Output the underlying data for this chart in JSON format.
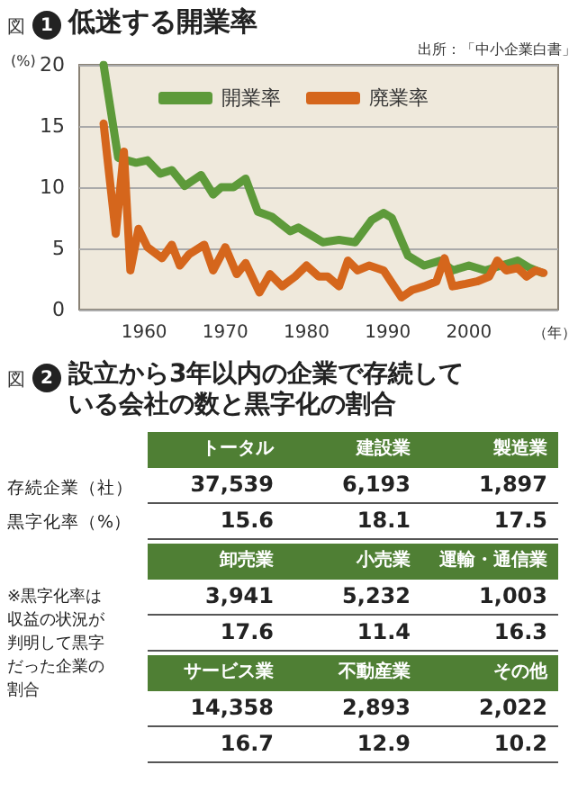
{
  "chart_data": [
    {
      "type": "line",
      "title": "低迷する開業率",
      "xlabel": "（年）",
      "ylabel": "(%)",
      "annotations": [
        "図",
        "1",
        "出所：「中小企業白書」"
      ],
      "xlim": [
        1952,
        2011
      ],
      "xticks": [
        1960,
        1970,
        1980,
        1990,
        2000
      ],
      "ylim": [
        0,
        20
      ],
      "yticks": [
        0,
        5,
        10,
        15,
        20
      ],
      "grid": "y",
      "legend": "top",
      "marker": "none",
      "line_style": "solid",
      "series": [
        {
          "name": "開業率",
          "color": "#5d9a3a",
          "x": [
            1955,
            1956.8,
            1959,
            1960.4,
            1962,
            1963.4,
            1965,
            1967,
            1968.5,
            1969.5,
            1971,
            1972.5,
            1974,
            1975.7,
            1978,
            1979,
            1982,
            1984,
            1986,
            1988,
            1989.5,
            1990.5,
            1992.5,
            1994.5,
            1996.5,
            1998,
            2000,
            2002,
            2004,
            2006,
            2007.5,
            2009
          ],
          "values": [
            20,
            12.4,
            12,
            12.2,
            11.1,
            11.4,
            10.1,
            11,
            9.4,
            10,
            10,
            10.7,
            8,
            7.6,
            6.4,
            6.7,
            5.5,
            5.7,
            5.5,
            7.3,
            7.9,
            7.5,
            4.4,
            3.6,
            4,
            3.2,
            3.6,
            3.2,
            3.6,
            4,
            3.4,
            3
          ]
        },
        {
          "name": "廃業率",
          "color": "#d5661c",
          "x": [
            1955,
            1956.5,
            1957.5,
            1958.3,
            1959.3,
            1960.4,
            1962.2,
            1963.4,
            1964.4,
            1965.5,
            1967.4,
            1968.5,
            1970,
            1971.4,
            1972.5,
            1974.2,
            1975.5,
            1977,
            1978.6,
            1980,
            1981.5,
            1982.6,
            1984,
            1985.1,
            1986.3,
            1987.7,
            1989.5,
            1991.7,
            1993,
            1994.5,
            1996,
            1997,
            1998,
            1999.6,
            2001,
            2002.5,
            2003.5,
            2004.6,
            2006,
            2007.1,
            2008.2,
            2009.2
          ],
          "values": [
            15.2,
            6.2,
            12.9,
            3.2,
            6.6,
            5.1,
            4.2,
            5.3,
            3.6,
            4.5,
            5.3,
            3.2,
            5.1,
            2.9,
            3.8,
            1.4,
            2.9,
            1.9,
            2.7,
            3.6,
            2.7,
            2.7,
            1.9,
            4,
            3.2,
            3.6,
            3.2,
            1,
            1.6,
            1.9,
            2.3,
            4.2,
            1.9,
            2.1,
            2.3,
            2.7,
            4,
            3.2,
            3.4,
            2.7,
            3.2,
            3
          ]
        }
      ]
    },
    {
      "type": "other",
      "title": "設立から3年以内の企業で存続している会社の数と黒字化の割合",
      "annotations": [
        "図",
        "2",
        "※黒字化率は収益の状況が判明して黒字だった企業の割合"
      ],
      "categories": [
        "トータル",
        "建設業",
        "製造業",
        "卸売業",
        "小売業",
        "運輸・通信業",
        "サービス業",
        "不動産業",
        "その他"
      ],
      "y_categories": [
        "存続企業（社）",
        "黒字化率（%）"
      ],
      "cell_labels": [
        [
          "37,539",
          "6,193",
          "1,897",
          "3,941",
          "5,232",
          "1,003",
          "14,358",
          "2,893",
          "2,022"
        ],
        [
          "15.6",
          "18.1",
          "17.5",
          "17.6",
          "11.4",
          "16.3",
          "16.7",
          "12.9",
          "10.2"
        ]
      ]
    }
  ]
}
